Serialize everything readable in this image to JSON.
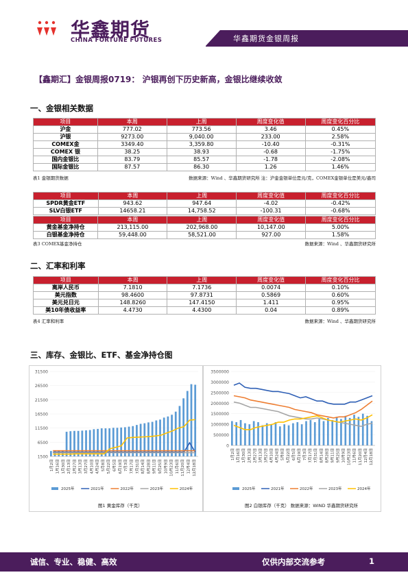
{
  "header": {
    "brand_cn": "华鑫期货",
    "brand_en": "CHINA FORTUNE FUTURES",
    "banner": "华鑫期货金银周报"
  },
  "title": "【鑫期汇】金银周报0719： 沪银再创下历史新高，金银比继续收敛",
  "sections": {
    "s1": "一、金银相关数据",
    "s2": "二、汇率和利率",
    "s3": "三、库存、金银比、ETF、基金净持仓图"
  },
  "table1": {
    "headers": [
      "项目",
      "本周",
      "上周",
      "周度变化值",
      "周度变化百分比"
    ],
    "rows": [
      [
        "沪金",
        "777.02",
        "773.56",
        "3.46",
        "0.45%"
      ],
      [
        "沪银",
        "9273.00",
        "9,040.00",
        "233.00",
        "2.58%"
      ],
      [
        "COMEX金",
        "3349.40",
        "3,359.80",
        "-10.40",
        "-0.31%"
      ],
      [
        "COMEX 银",
        "38.25",
        "38.93",
        "-0.68",
        "-1.75%"
      ],
      [
        "国内金银比",
        "83.79",
        "85.57",
        "-1.78",
        "-2.08%"
      ],
      [
        "国际金银比",
        "87.57",
        "86.30",
        "1.26",
        "1.46%"
      ]
    ],
    "note_left": "表1  金银期货数据",
    "note_right": "数据来源：Wind 、华鑫期货研究所  注：沪金金银单位是元/克，COMEX金银单位是美元/盎司"
  },
  "table2": {
    "headers": [
      "项目",
      "本周",
      "上周",
      "周度变化值",
      "周度变化百分比"
    ],
    "rows": [
      [
        "SPDR黄金ETF",
        "943.62",
        "947.64",
        "-4.02",
        "-0.42%"
      ],
      [
        "SLV白银ETF",
        "14658.21",
        "14,758.52",
        "-100.31",
        "-0.68%"
      ]
    ]
  },
  "table3": {
    "headers": [
      "项目",
      "本周",
      "上周",
      "周度变化值",
      "周度变化百分比"
    ],
    "rows": [
      [
        "黄金基金净持仓",
        "213,115.00",
        "202,968.00",
        "10,147.00",
        "5.00%"
      ],
      [
        "白银基金净持仓",
        "59,448.00",
        "58,521.00",
        "927.00",
        "1.58%"
      ]
    ],
    "note_left": "表3  COMEX基金净持仓",
    "note_right": "数据来源：Wind 、华鑫期货研究所"
  },
  "table4": {
    "headers": [
      "项目",
      "本周",
      "上周",
      "周度变化值",
      "周度变化百分比"
    ],
    "rows": [
      [
        "离岸人民币",
        "7.1810",
        "7.1736",
        "0.0074",
        "0.10%"
      ],
      [
        "美元指数",
        "98.4600",
        "97.8731",
        "0.5869",
        "0.60%"
      ],
      [
        "美元兑日元",
        "148.8260",
        "147.4150",
        "1.411",
        "0.95%"
      ],
      [
        "美10年债收益率",
        "4.4730",
        "4.4300",
        "0.04",
        "0.89%"
      ]
    ],
    "note_left": "表4  汇率和利率",
    "note_right": "数据来源：Wind 、华鑫期货研究所"
  },
  "chart_data": [
    {
      "type": "bar",
      "title": "",
      "caption": "图1 黄金库存（千克）",
      "ylim": [
        1500,
        31500
      ],
      "yticks": [
        "31500",
        "26500",
        "21500",
        "16500",
        "11500",
        "6500",
        "1500"
      ],
      "xticks": [
        "1月2日",
        "1月16日",
        "1月30日",
        "2月13日",
        "2月27日",
        "3月13日",
        "3月27日",
        "4月10日",
        "4月24日",
        "5月8日",
        "5月22日",
        "6月5日",
        "6月19日",
        "7月3日",
        "7月17日",
        "7月31日",
        "8月14日",
        "8月28日",
        "9月11日",
        "9月25日",
        "10月9日",
        "10月23日",
        "11月6日",
        "11月20日",
        "12月4日",
        "12月18日"
      ],
      "series": [
        {
          "name": "2025年",
          "color": "#5b9bd5",
          "type": "bar"
        },
        {
          "name": "2021年",
          "color": "#2e5fb5",
          "type": "line"
        },
        {
          "name": "2022年",
          "color": "#ed7d31",
          "type": "line"
        },
        {
          "name": "2023年",
          "color": "#a5a5a5",
          "type": "line"
        },
        {
          "name": "2024年",
          "color": "#ffc000",
          "type": "line"
        }
      ],
      "bars_2025": [
        3400,
        3400,
        3400,
        3400,
        10200,
        10400,
        10500,
        10500,
        10600,
        10700,
        10800,
        11100,
        11200,
        11400,
        11400,
        11400,
        11600,
        11600,
        11700,
        11800,
        12000,
        12200,
        12600,
        13000,
        13200,
        13500,
        13700,
        14200,
        14500,
        15200,
        15600,
        16200,
        17300,
        19300,
        22000,
        24600,
        27000,
        26800
      ],
      "line_2021": [
        3000,
        3000,
        3000,
        3000,
        3000,
        3000,
        3000,
        3000,
        3000,
        3000,
        3000,
        3000,
        3000,
        3000,
        3000,
        3000,
        3000,
        3000,
        3000,
        3000,
        3000,
        3000,
        3000,
        3000,
        6300,
        3000
      ],
      "line_2022": [
        3500,
        3500,
        3500,
        3500,
        3500,
        3500,
        3500,
        3500,
        3500,
        3500,
        3500,
        3500,
        3500,
        3500,
        3500,
        3500,
        3500,
        3500,
        3500,
        3500,
        3500,
        3500,
        3500,
        3500,
        3500,
        3500
      ],
      "line_2023": [
        2800,
        2800,
        2800,
        2800,
        2800,
        2800,
        2800,
        2800,
        2800,
        2800,
        2800,
        2800,
        2800,
        2800,
        2800,
        2800,
        2800,
        2800,
        2800,
        2800,
        2800,
        2800,
        2800,
        2800,
        2800,
        2800
      ],
      "line_2024": [
        2300,
        2300,
        2300,
        2300,
        2400,
        2400,
        2400,
        2400,
        2400,
        2400,
        4200,
        4700,
        5200,
        8000,
        8200,
        8300,
        8400,
        8500,
        8700,
        9000,
        9800,
        10500,
        11500,
        12000,
        14300,
        14500
      ]
    },
    {
      "type": "line",
      "title": "",
      "caption": "图2 白银库存（千克）  数据来源：WIND 华鑫期货研究所",
      "ylim": [
        0,
        3500000
      ],
      "yticks": [
        "3500000",
        "3000000",
        "2500000",
        "2000000",
        "1500000",
        "1000000",
        "500000",
        "0"
      ],
      "xticks": [
        "1月2日",
        "1月16日",
        "1月30日",
        "2月13日",
        "2月27日",
        "3月13日",
        "3月27日",
        "4月10日",
        "4月24日",
        "5月8日",
        "5月22日",
        "6月5日",
        "6月19日",
        "7月3日",
        "7月17日",
        "7月31日",
        "8月14日",
        "8月28日",
        "9月11日",
        "9月25日",
        "10月9日",
        "10月23日",
        "11月6日",
        "11月20日",
        "12月4日",
        "12月18日"
      ],
      "series": [
        {
          "name": "2025年",
          "color": "#5b9bd5",
          "type": "bar"
        },
        {
          "name": "2021年",
          "color": "#2e5fb5",
          "type": "line"
        },
        {
          "name": "2022年",
          "color": "#ed7d31",
          "type": "line"
        },
        {
          "name": "2023年",
          "color": "#a5a5a5",
          "type": "line"
        },
        {
          "name": "2024年",
          "color": "#ffc000",
          "type": "line"
        }
      ],
      "bars_2025": [
        1150000,
        1100000,
        1200000,
        1050000,
        1000000,
        1150000,
        1100000,
        950000,
        1050000,
        1000000,
        1100000,
        900000,
        1000000,
        950000,
        1050000,
        1100000,
        1000000,
        1150000,
        1200000,
        1100000,
        1250000,
        1150000,
        1300000,
        1200000,
        1350000,
        1250000,
        1400000,
        1300000,
        1450000,
        1350000,
        1500000,
        1400000,
        1150000
      ],
      "line_2021": [
        2850000,
        2950000,
        2750000,
        2700000,
        2700000,
        2650000,
        2600000,
        2550000,
        2550000,
        2500000,
        2450000,
        2350000,
        2250000,
        2300000,
        2200000,
        2100000,
        2100000,
        2000000,
        1950000,
        1950000,
        1950000,
        2050000,
        2050000,
        2150000,
        2250000,
        2350000
      ],
      "line_2022": [
        2350000,
        2300000,
        2250000,
        2150000,
        2100000,
        2050000,
        2000000,
        1950000,
        1900000,
        1850000,
        1800000,
        1700000,
        1650000,
        1600000,
        1550000,
        1450000,
        1400000,
        1350000,
        1300000,
        1350000,
        1350000,
        1450000,
        1550000,
        1700000,
        1900000,
        2100000
      ],
      "line_2023": [
        2050000,
        2000000,
        1900000,
        1800000,
        1800000,
        1750000,
        1700000,
        1650000,
        1600000,
        1500000,
        1400000,
        1350000,
        1300000,
        1250000,
        1250000,
        1300000,
        1250000,
        1200000,
        1150000,
        1100000,
        1050000,
        1000000,
        950000,
        900000,
        1000000,
        1050000
      ],
      "line_2024": [
        950000,
        850000,
        750000,
        750000,
        850000,
        900000,
        950000,
        1000000,
        1100000,
        1100000,
        1200000,
        1250000,
        1250000,
        1300000,
        1350000,
        1400000,
        1300000,
        1200000,
        1150000,
        1100000,
        1150000,
        1200000,
        1250000,
        1200000,
        1300000,
        1450000
      ]
    }
  ],
  "footer": {
    "left": "诚信、专业、稳健、高效",
    "right": "仅供内部交流参考",
    "page": "1"
  }
}
